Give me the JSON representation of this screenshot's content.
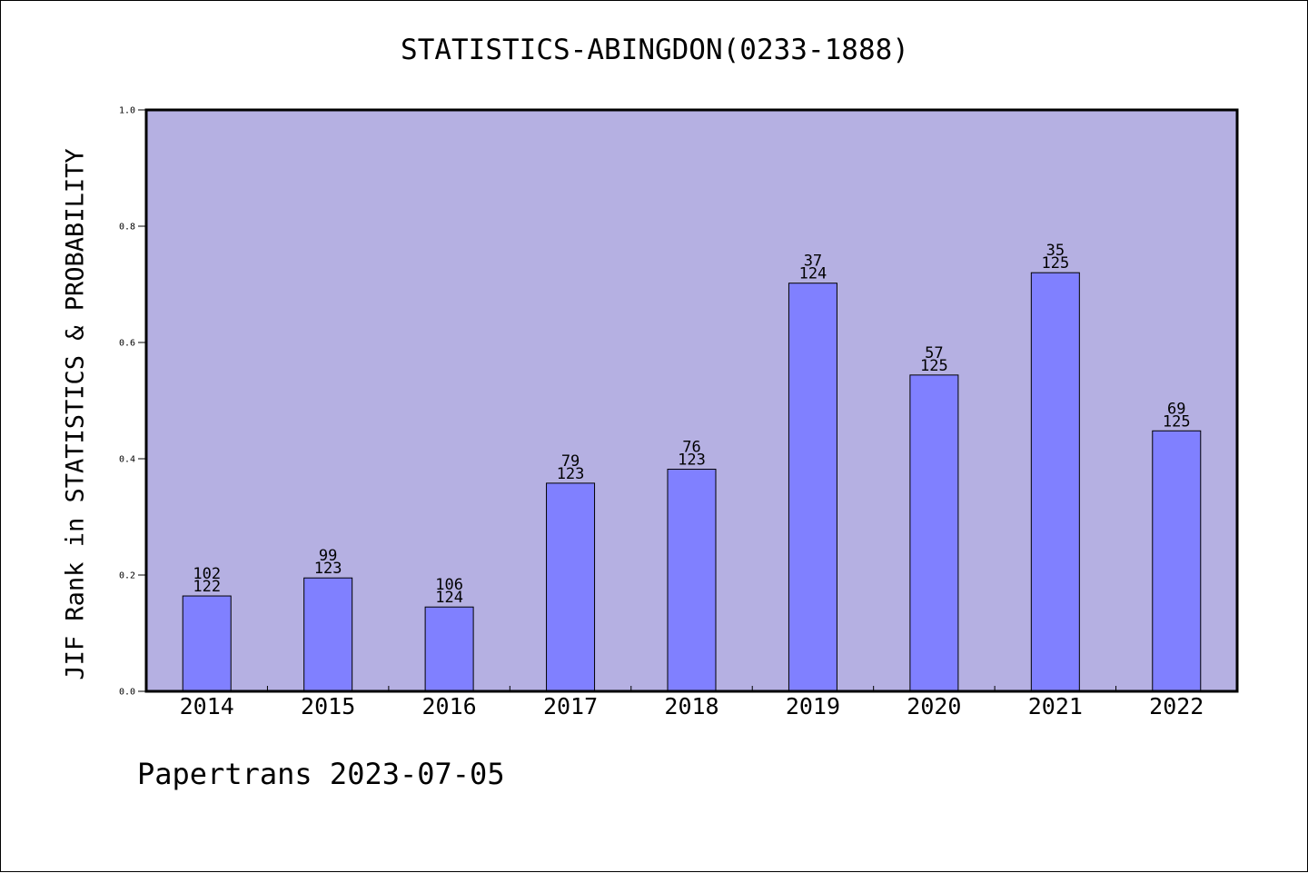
{
  "title": "STATISTICS-ABINGDON(0233-1888)",
  "ylabel": "JIF Rank in STATISTICS & PROBABILITY",
  "footer": "Papertrans 2023-07-05",
  "colors": {
    "plot_bg": "#b5b0e2",
    "bar_fill": "#8080ff",
    "bar_stroke": "#000000"
  },
  "chart_data": {
    "type": "bar",
    "categories": [
      "2014",
      "2015",
      "2016",
      "2017",
      "2018",
      "2019",
      "2020",
      "2021",
      "2022"
    ],
    "values": [
      0.164,
      0.195,
      0.145,
      0.358,
      0.382,
      0.702,
      0.544,
      0.72,
      0.448
    ],
    "rank": [
      "102",
      "99",
      "106",
      "79",
      "76",
      "37",
      "57",
      "35",
      "69"
    ],
    "total": [
      "122",
      "123",
      "124",
      "123",
      "123",
      "124",
      "125",
      "125",
      "125"
    ],
    "ylim": [
      0,
      1.0
    ],
    "yticks": [
      "0.0",
      "0.2",
      "0.4",
      "0.6",
      "0.8",
      "1.0"
    ],
    "grid": false
  }
}
